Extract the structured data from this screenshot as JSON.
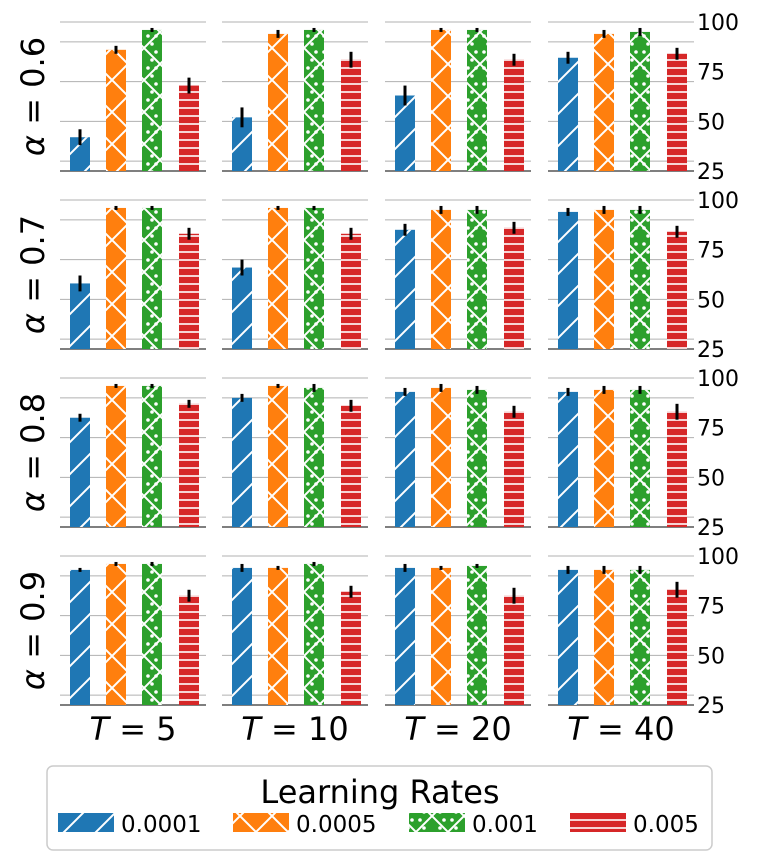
{
  "chart_data": {
    "type": "bar",
    "layout": "grid",
    "row_variable": "α",
    "col_variable": "T",
    "rows": [
      {
        "label_var": "α",
        "label_eq": " = ",
        "label_val": "0.6"
      },
      {
        "label_var": "α",
        "label_eq": " = ",
        "label_val": "0.7"
      },
      {
        "label_var": "α",
        "label_eq": " = ",
        "label_val": "0.8"
      },
      {
        "label_var": "α",
        "label_eq": " = ",
        "label_val": "0.9"
      }
    ],
    "columns": [
      {
        "label_var": "T",
        "label_eq": " = ",
        "label_val": "5"
      },
      {
        "label_var": "T",
        "label_eq": " = ",
        "label_val": "10"
      },
      {
        "label_var": "T",
        "label_eq": " = ",
        "label_val": "20"
      },
      {
        "label_var": "T",
        "label_eq": " = ",
        "label_val": "40"
      }
    ],
    "ylim": [
      25,
      100
    ],
    "yticks": [
      "25",
      "50",
      "75",
      "100"
    ],
    "series": [
      {
        "name": "0.0001",
        "color": "#1f77b4",
        "hatch": "diagonal"
      },
      {
        "name": "0.0005",
        "color": "#ff7f0e",
        "hatch": "cross"
      },
      {
        "name": "0.001",
        "color": "#2ca02c",
        "hatch": "dots-cross"
      },
      {
        "name": "0.005",
        "color": "#d62728",
        "hatch": "horizontal"
      }
    ],
    "values": [
      [
        [
          42,
          86,
          96,
          68
        ],
        [
          52,
          94,
          96,
          81
        ],
        [
          63,
          96,
          96,
          81
        ],
        [
          82,
          94,
          95,
          84
        ]
      ],
      [
        [
          58,
          96,
          96,
          83
        ],
        [
          66,
          96,
          96,
          83
        ],
        [
          85,
          95,
          95,
          86
        ],
        [
          94,
          95,
          95,
          84
        ]
      ],
      [
        [
          80,
          96,
          96,
          87
        ],
        [
          90,
          96,
          95,
          86
        ],
        [
          93,
          95,
          94,
          83
        ],
        [
          93,
          94,
          94,
          83
        ]
      ],
      [
        [
          93,
          96,
          96,
          80
        ],
        [
          94,
          94,
          96,
          82
        ],
        [
          94,
          94,
          95,
          80
        ],
        [
          93,
          93,
          93,
          83
        ]
      ]
    ],
    "errors": [
      [
        [
          4,
          2,
          1,
          4
        ],
        [
          5,
          2,
          1,
          4
        ],
        [
          5,
          1,
          1,
          3
        ],
        [
          3,
          2,
          2,
          3
        ]
      ],
      [
        [
          4,
          1,
          1,
          3
        ],
        [
          4,
          1,
          1,
          3
        ],
        [
          3,
          2,
          2,
          3
        ],
        [
          2,
          2,
          2,
          3
        ]
      ],
      [
        [
          2,
          1,
          1,
          2
        ],
        [
          2,
          1,
          2,
          3
        ],
        [
          2,
          2,
          2,
          3
        ],
        [
          2,
          2,
          2,
          4
        ]
      ],
      [
        [
          1,
          1,
          1,
          3
        ],
        [
          2,
          1,
          1,
          3
        ],
        [
          2,
          1,
          1,
          4
        ],
        [
          2,
          2,
          2,
          4
        ]
      ]
    ],
    "legend": {
      "title": "Learning Rates",
      "placement": "bottom-center"
    },
    "grid": true
  }
}
